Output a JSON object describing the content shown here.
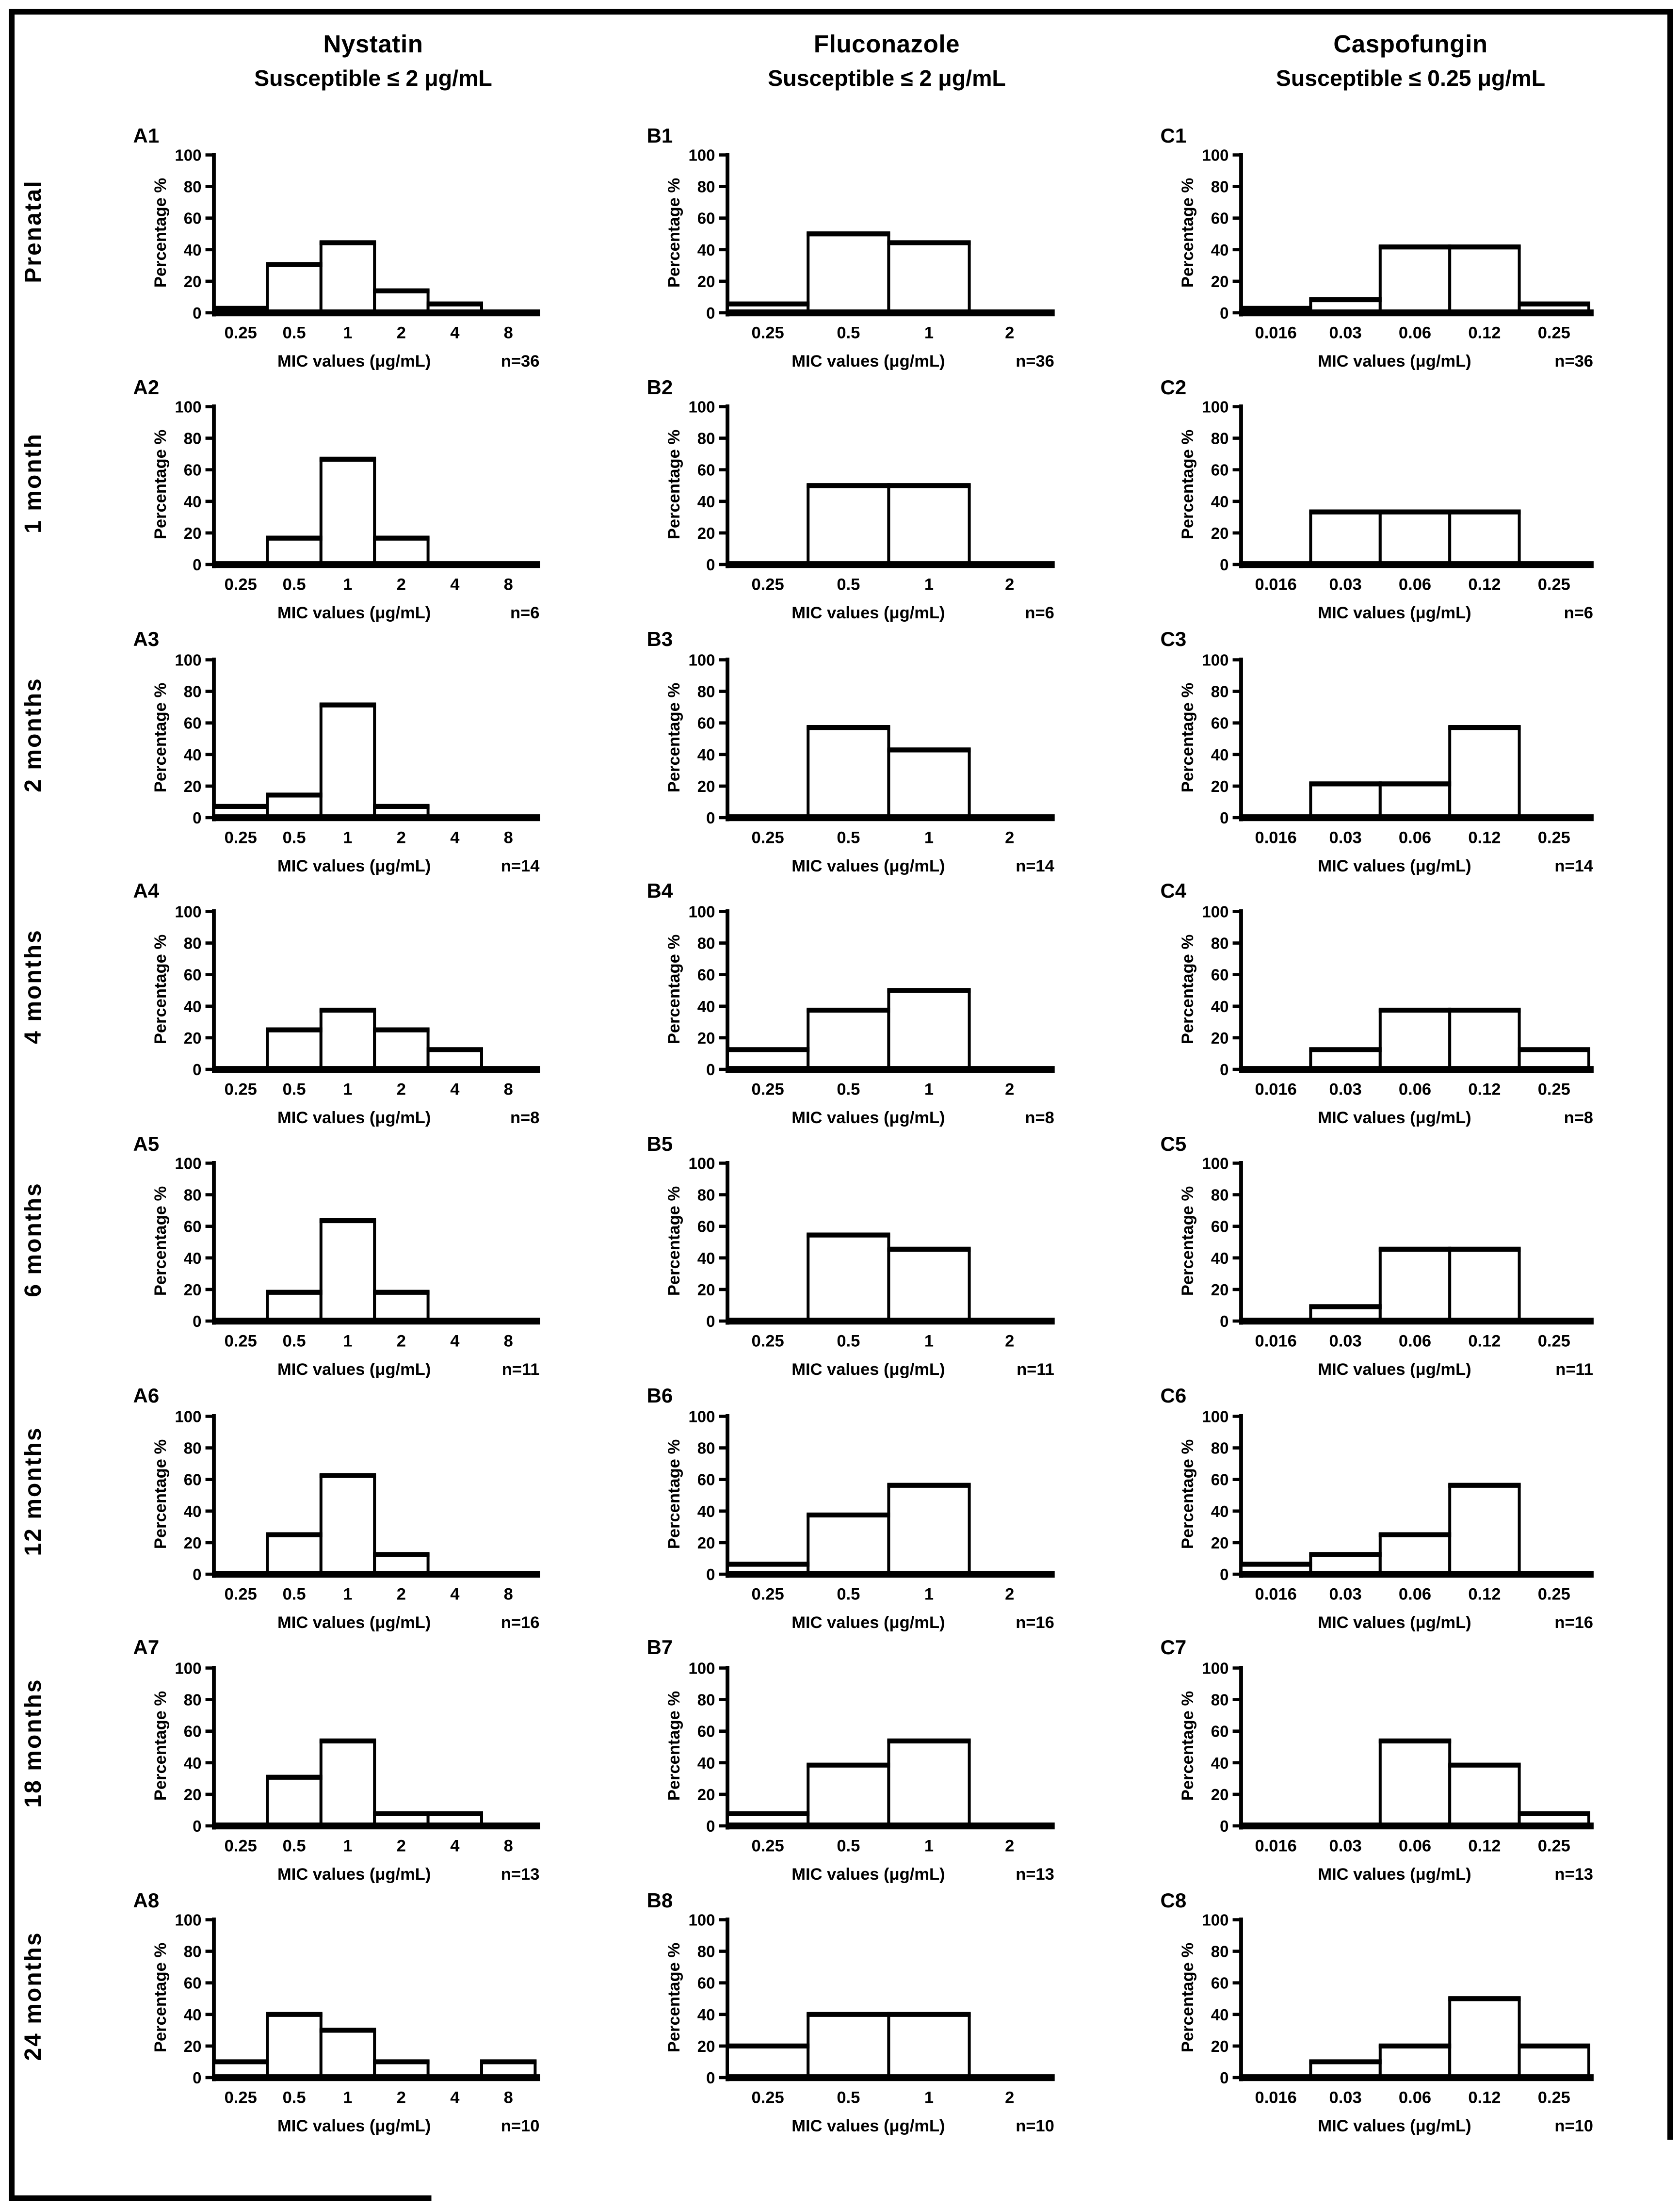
{
  "figure": {
    "columns": [
      {
        "title": "Nystatin",
        "subtitle": "Susceptible ≤ 2 μg/mL"
      },
      {
        "title": "Fluconazole",
        "subtitle": "Susceptible ≤ 2 μg/mL"
      },
      {
        "title": "Caspofungin",
        "subtitle": "Susceptible ≤ 0.25 μg/mL"
      }
    ],
    "row_labels": [
      "Prenatal",
      "1 month",
      "2 months",
      "4 months",
      "6 months",
      "12 months",
      "18 months",
      "24 months"
    ],
    "ylabel": "Percentage %",
    "xlabel": "MIC values (μg/mL)",
    "yticks": [
      0,
      20,
      40,
      60,
      80,
      100
    ]
  },
  "chart_data": [
    {
      "panel": "A1",
      "row": "Prenatal",
      "drug": "Nystatin",
      "type": "bar",
      "n": 36,
      "n_label": "n=36",
      "ylim": [
        0,
        100
      ],
      "categories": [
        "0.25",
        "0.5",
        "1",
        "2",
        "4",
        "8"
      ],
      "values": [
        2.8,
        30.6,
        44.4,
        13.9,
        5.6,
        0
      ]
    },
    {
      "panel": "B1",
      "row": "Prenatal",
      "drug": "Fluconazole",
      "type": "bar",
      "n": 36,
      "n_label": "n=36",
      "ylim": [
        0,
        100
      ],
      "categories": [
        "0.25",
        "0.5",
        "1",
        "2"
      ],
      "values": [
        5.6,
        50,
        44.4,
        0
      ]
    },
    {
      "panel": "C1",
      "row": "Prenatal",
      "drug": "Caspofungin",
      "type": "bar",
      "n": 36,
      "n_label": "n=36",
      "ylim": [
        0,
        100
      ],
      "categories": [
        "0.016",
        "0.03",
        "0.06",
        "0.12",
        "0.25"
      ],
      "values": [
        2.8,
        8.3,
        41.7,
        41.7,
        5.6
      ]
    },
    {
      "panel": "A2",
      "row": "1 month",
      "drug": "Nystatin",
      "type": "bar",
      "n": 6,
      "n_label": "n=6",
      "ylim": [
        0,
        100
      ],
      "categories": [
        "0.25",
        "0.5",
        "1",
        "2",
        "4",
        "8"
      ],
      "values": [
        0,
        16.7,
        66.7,
        16.7,
        0,
        0
      ]
    },
    {
      "panel": "B2",
      "row": "1 month",
      "drug": "Fluconazole",
      "type": "bar",
      "n": 6,
      "n_label": "n=6",
      "ylim": [
        0,
        100
      ],
      "categories": [
        "0.25",
        "0.5",
        "1",
        "2"
      ],
      "values": [
        0,
        50,
        50,
        0
      ]
    },
    {
      "panel": "C2",
      "row": "1 month",
      "drug": "Caspofungin",
      "type": "bar",
      "n": 6,
      "n_label": "n=6",
      "ylim": [
        0,
        100
      ],
      "categories": [
        "0.016",
        "0.03",
        "0.06",
        "0.12",
        "0.25"
      ],
      "values": [
        0,
        33.3,
        33.3,
        33.3,
        0
      ]
    },
    {
      "panel": "A3",
      "row": "2 months",
      "drug": "Nystatin",
      "type": "bar",
      "n": 14,
      "n_label": "n=14",
      "ylim": [
        0,
        100
      ],
      "categories": [
        "0.25",
        "0.5",
        "1",
        "2",
        "4",
        "8"
      ],
      "values": [
        7.1,
        14.3,
        71.4,
        7.1,
        0,
        0
      ]
    },
    {
      "panel": "B3",
      "row": "2 months",
      "drug": "Fluconazole",
      "type": "bar",
      "n": 14,
      "n_label": "n=14",
      "ylim": [
        0,
        100
      ],
      "categories": [
        "0.25",
        "0.5",
        "1",
        "2"
      ],
      "values": [
        0,
        57.1,
        42.9,
        0
      ]
    },
    {
      "panel": "C3",
      "row": "2 months",
      "drug": "Caspofungin",
      "type": "bar",
      "n": 14,
      "n_label": "n=14",
      "ylim": [
        0,
        100
      ],
      "categories": [
        "0.016",
        "0.03",
        "0.06",
        "0.12",
        "0.25"
      ],
      "values": [
        0,
        21.4,
        21.4,
        57.1,
        0
      ]
    },
    {
      "panel": "A4",
      "row": "4 months",
      "drug": "Nystatin",
      "type": "bar",
      "n": 8,
      "n_label": "n=8",
      "ylim": [
        0,
        100
      ],
      "categories": [
        "0.25",
        "0.5",
        "1",
        "2",
        "4",
        "8"
      ],
      "values": [
        0,
        25,
        37.5,
        25,
        12.5,
        0
      ]
    },
    {
      "panel": "B4",
      "row": "4 months",
      "drug": "Fluconazole",
      "type": "bar",
      "n": 8,
      "n_label": "n=8",
      "ylim": [
        0,
        100
      ],
      "categories": [
        "0.25",
        "0.5",
        "1",
        "2"
      ],
      "values": [
        12.5,
        37.5,
        50,
        0
      ]
    },
    {
      "panel": "C4",
      "row": "4 months",
      "drug": "Caspofungin",
      "type": "bar",
      "n": 8,
      "n_label": "n=8",
      "ylim": [
        0,
        100
      ],
      "categories": [
        "0.016",
        "0.03",
        "0.06",
        "0.12",
        "0.25"
      ],
      "values": [
        0,
        12.5,
        37.5,
        37.5,
        12.5
      ]
    },
    {
      "panel": "A5",
      "row": "6 months",
      "drug": "Nystatin",
      "type": "bar",
      "n": 11,
      "n_label": "n=11",
      "ylim": [
        0,
        100
      ],
      "categories": [
        "0.25",
        "0.5",
        "1",
        "2",
        "4",
        "8"
      ],
      "values": [
        0,
        18.2,
        63.6,
        18.2,
        0,
        0
      ]
    },
    {
      "panel": "B5",
      "row": "6 months",
      "drug": "Fluconazole",
      "type": "bar",
      "n": 11,
      "n_label": "n=11",
      "ylim": [
        0,
        100
      ],
      "categories": [
        "0.25",
        "0.5",
        "1",
        "2"
      ],
      "values": [
        0,
        54.5,
        45.5,
        0
      ]
    },
    {
      "panel": "C5",
      "row": "6 months",
      "drug": "Caspofungin",
      "type": "bar",
      "n": 11,
      "n_label": "n=11",
      "ylim": [
        0,
        100
      ],
      "categories": [
        "0.016",
        "0.03",
        "0.06",
        "0.12",
        "0.25"
      ],
      "values": [
        0,
        9.1,
        45.5,
        45.5,
        0
      ]
    },
    {
      "panel": "A6",
      "row": "12 months",
      "drug": "Nystatin",
      "type": "bar",
      "n": 16,
      "n_label": "n=16",
      "ylim": [
        0,
        100
      ],
      "categories": [
        "0.25",
        "0.5",
        "1",
        "2",
        "4",
        "8"
      ],
      "values": [
        0,
        25,
        62.5,
        12.5,
        0,
        0
      ]
    },
    {
      "panel": "B6",
      "row": "12 months",
      "drug": "Fluconazole",
      "type": "bar",
      "n": 16,
      "n_label": "n=16",
      "ylim": [
        0,
        100
      ],
      "categories": [
        "0.25",
        "0.5",
        "1",
        "2"
      ],
      "values": [
        6.3,
        37.5,
        56.3,
        0
      ]
    },
    {
      "panel": "C6",
      "row": "12 months",
      "drug": "Caspofungin",
      "type": "bar",
      "n": 16,
      "n_label": "n=16",
      "ylim": [
        0,
        100
      ],
      "categories": [
        "0.016",
        "0.03",
        "0.06",
        "0.12",
        "0.25"
      ],
      "values": [
        6.3,
        12.5,
        25,
        56.3,
        0
      ]
    },
    {
      "panel": "A7",
      "row": "18 months",
      "drug": "Nystatin",
      "type": "bar",
      "n": 13,
      "n_label": "n=13",
      "ylim": [
        0,
        100
      ],
      "categories": [
        "0.25",
        "0.5",
        "1",
        "2",
        "4",
        "8"
      ],
      "values": [
        0,
        30.8,
        53.8,
        7.7,
        7.7,
        0
      ]
    },
    {
      "panel": "B7",
      "row": "18 months",
      "drug": "Fluconazole",
      "type": "bar",
      "n": 13,
      "n_label": "n=13",
      "ylim": [
        0,
        100
      ],
      "categories": [
        "0.25",
        "0.5",
        "1",
        "2"
      ],
      "values": [
        7.7,
        38.5,
        53.8,
        0
      ]
    },
    {
      "panel": "C7",
      "row": "18 months",
      "drug": "Caspofungin",
      "type": "bar",
      "n": 13,
      "n_label": "n=13",
      "ylim": [
        0,
        100
      ],
      "categories": [
        "0.016",
        "0.03",
        "0.06",
        "0.12",
        "0.25"
      ],
      "values": [
        0,
        0,
        53.8,
        38.5,
        7.7
      ]
    },
    {
      "panel": "A8",
      "row": "24 months",
      "drug": "Nystatin",
      "type": "bar",
      "n": 10,
      "n_label": "n=10",
      "ylim": [
        0,
        100
      ],
      "categories": [
        "0.25",
        "0.5",
        "1",
        "2",
        "4",
        "8"
      ],
      "values": [
        10,
        40,
        30,
        10,
        0,
        10
      ]
    },
    {
      "panel": "B8",
      "row": "24 months",
      "drug": "Fluconazole",
      "type": "bar",
      "n": 10,
      "n_label": "n=10",
      "ylim": [
        0,
        100
      ],
      "categories": [
        "0.25",
        "0.5",
        "1",
        "2"
      ],
      "values": [
        20,
        40,
        40,
        0
      ]
    },
    {
      "panel": "C8",
      "row": "24 months",
      "drug": "Caspofungin",
      "type": "bar",
      "n": 10,
      "n_label": "n=10",
      "ylim": [
        0,
        100
      ],
      "categories": [
        "0.016",
        "0.03",
        "0.06",
        "0.12",
        "0.25"
      ],
      "values": [
        0,
        10,
        20,
        50,
        20
      ]
    }
  ]
}
